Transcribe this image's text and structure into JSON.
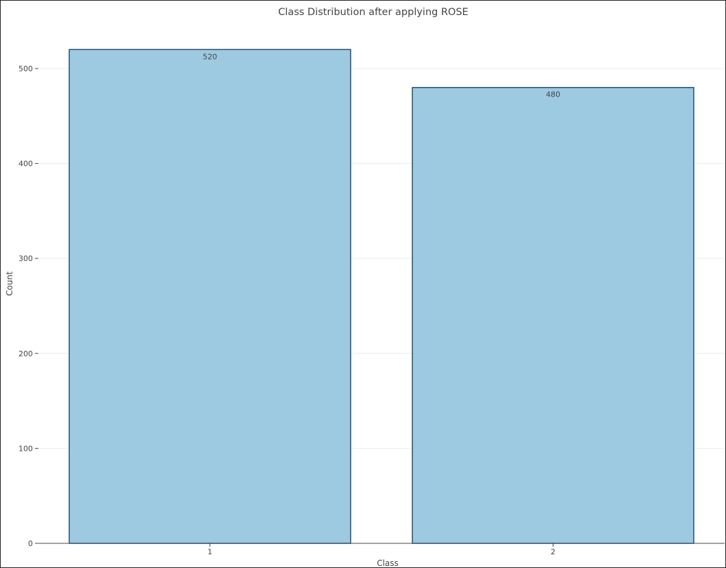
{
  "chart_data": {
    "type": "bar",
    "title": "Class Distribution after applying ROSE",
    "xlabel": "Class",
    "ylabel": "Count",
    "categories": [
      "1",
      "2"
    ],
    "values": [
      520,
      480
    ],
    "data_labels": [
      "520",
      "480"
    ],
    "ylim": [
      0,
      540
    ],
    "yticks": [
      0,
      100,
      200,
      300,
      400,
      500
    ],
    "grid": true,
    "legend": "none",
    "colors": {
      "bar_fill": "#9ecae1",
      "bar_stroke": "#1f4e79"
    }
  }
}
